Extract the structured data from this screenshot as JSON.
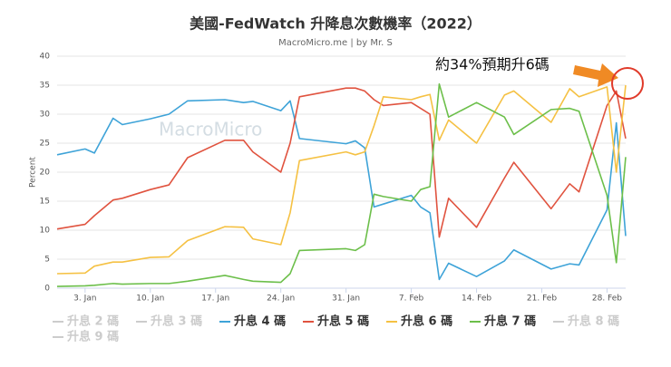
{
  "chart_data": {
    "type": "line",
    "title": "美國-FedWatch 升降息次數機率（2022）",
    "subtitle": "MacroMicro.me | by Mr. S",
    "watermark": "MacroMicro",
    "y_label": "Percent",
    "annotation": "約34%預期升6碼",
    "x": [
      0,
      3,
      4,
      6,
      7,
      10,
      12,
      14,
      18,
      20,
      21,
      24,
      25,
      26,
      31,
      32,
      33,
      34,
      35,
      38,
      39,
      40,
      41,
      42,
      45,
      48,
      49,
      53,
      55,
      56,
      59,
      60,
      61
    ],
    "xlim": [
      0,
      61
    ],
    "xticks": [
      {
        "value": 3,
        "label": "3. Jan"
      },
      {
        "value": 10,
        "label": "10. Jan"
      },
      {
        "value": 17,
        "label": "17. Jan"
      },
      {
        "value": 24,
        "label": "24. Jan"
      },
      {
        "value": 31,
        "label": "31. Jan"
      },
      {
        "value": 38,
        "label": "7. Feb"
      },
      {
        "value": 45,
        "label": "14. Feb"
      },
      {
        "value": 52,
        "label": "21. Feb"
      },
      {
        "value": 59,
        "label": "28. Feb"
      }
    ],
    "ylim": [
      0,
      40
    ],
    "yticks": [
      0,
      5,
      10,
      15,
      20,
      25,
      30,
      35,
      40
    ],
    "grid": true,
    "series": [
      {
        "name": "升息 2 碼",
        "color": "#cccccc",
        "visible": false,
        "values": [
          null,
          null,
          null,
          null,
          null,
          null,
          null,
          null,
          null,
          null,
          null,
          null,
          null,
          null,
          null,
          null,
          null,
          null,
          null,
          null,
          null,
          null,
          null,
          null,
          null,
          null,
          null,
          null,
          null,
          null,
          null,
          null,
          null
        ]
      },
      {
        "name": "升息 3 碼",
        "color": "#cccccc",
        "visible": false,
        "values": [
          null,
          null,
          null,
          null,
          null,
          null,
          null,
          null,
          null,
          null,
          null,
          null,
          null,
          null,
          null,
          null,
          null,
          null,
          null,
          null,
          null,
          null,
          null,
          null,
          null,
          null,
          null,
          null,
          null,
          null,
          null,
          null,
          null
        ]
      },
      {
        "name": "升息 4 碼",
        "color": "#3ea3d8",
        "visible": true,
        "values": [
          23,
          24,
          23.3,
          29.3,
          28.2,
          29.2,
          30,
          32.3,
          32.5,
          32,
          32.2,
          30.6,
          32.3,
          25.8,
          24.9,
          25.4,
          24.2,
          14,
          14.5,
          16,
          14,
          13,
          1.5,
          4.3,
          2,
          4.7,
          6.6,
          3.3,
          4.2,
          4,
          13.5,
          28.5,
          9
        ]
      },
      {
        "name": "升息 5 碼",
        "color": "#e0533f",
        "visible": true,
        "values": [
          10.2,
          11,
          12.5,
          15.2,
          15.5,
          17,
          17.8,
          22.5,
          25.5,
          25.5,
          23.5,
          20,
          25,
          33,
          34.5,
          34.5,
          34,
          32.5,
          31.5,
          32,
          31,
          30,
          8.8,
          15.5,
          10.5,
          19,
          21.7,
          13.7,
          18,
          16.6,
          31.5,
          34,
          25.8
        ]
      },
      {
        "name": "升息 6 碼",
        "color": "#f5c143",
        "visible": true,
        "values": [
          2.5,
          2.6,
          3.8,
          4.5,
          4.5,
          5.3,
          5.4,
          8.2,
          10.6,
          10.5,
          8.5,
          7.5,
          13,
          22,
          23.5,
          23,
          23.5,
          28,
          33,
          32.5,
          33,
          33.4,
          25.5,
          29,
          25,
          33.3,
          34,
          28.6,
          34.4,
          33,
          34.7,
          20,
          35
        ]
      },
      {
        "name": "升息 7 碼",
        "color": "#6cbf4a",
        "visible": true,
        "values": [
          0.3,
          0.4,
          0.5,
          0.8,
          0.7,
          0.8,
          0.8,
          1.2,
          2.2,
          1.5,
          1.2,
          1,
          2.5,
          6.5,
          6.8,
          6.5,
          7.5,
          16.2,
          15.8,
          15,
          17,
          17.5,
          35.2,
          29.5,
          32,
          29.5,
          26.5,
          30.8,
          31,
          30.5,
          16,
          4.4,
          22.6
        ]
      },
      {
        "name": "升息 8 碼",
        "color": "#cccccc",
        "visible": false,
        "values": [
          null,
          null,
          null,
          null,
          null,
          null,
          null,
          null,
          null,
          null,
          null,
          null,
          null,
          null,
          null,
          null,
          null,
          null,
          null,
          null,
          null,
          null,
          null,
          null,
          null,
          null,
          null,
          null,
          null,
          null,
          null,
          null,
          null
        ]
      },
      {
        "name": "升息 9 碼",
        "color": "#cccccc",
        "visible": false,
        "values": [
          null,
          null,
          null,
          null,
          null,
          null,
          null,
          null,
          null,
          null,
          null,
          null,
          null,
          null,
          null,
          null,
          null,
          null,
          null,
          null,
          null,
          null,
          null,
          null,
          null,
          null,
          null,
          null,
          null,
          null,
          null,
          null,
          null
        ]
      }
    ]
  }
}
